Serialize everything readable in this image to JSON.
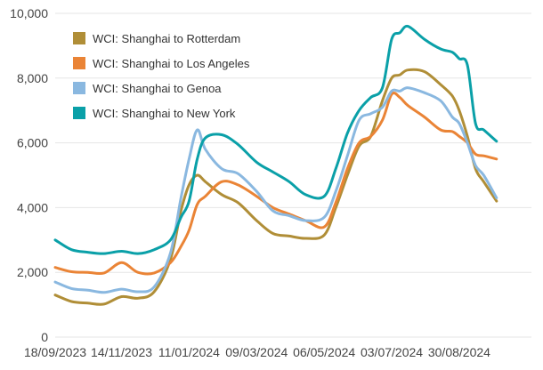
{
  "chart_data": {
    "type": "line",
    "title": "",
    "xlabel": "",
    "ylabel": "",
    "ylim": [
      0,
      10000
    ],
    "yticks": [
      0,
      2000,
      4000,
      6000,
      8000,
      10000
    ],
    "ytick_labels": [
      "0",
      "2,000",
      "4,000",
      "6,000",
      "8,000",
      "10,000"
    ],
    "xlim": [
      "2023-09-18",
      "2024-10-31"
    ],
    "xticks": [
      "2023-09-18",
      "2023-11-14",
      "2024-01-11",
      "2024-03-09",
      "2024-05-06",
      "2024-07-03",
      "2024-08-30"
    ],
    "xtick_labels": [
      "18/09/2023",
      "14/11/2023",
      "11/01/2024",
      "09/03/2024",
      "06/05/2024",
      "03/07/2024",
      "30/08/2024"
    ],
    "grid": "horizontal",
    "legend_position": "top-left",
    "series": [
      {
        "name": "WCI: Shanghai to Rotterdam",
        "color": "#b08e37",
        "points": [
          [
            "2023-09-18",
            1300
          ],
          [
            "2023-10-02",
            1100
          ],
          [
            "2023-10-16",
            1050
          ],
          [
            "2023-10-30",
            1020
          ],
          [
            "2023-11-14",
            1250
          ],
          [
            "2023-11-28",
            1200
          ],
          [
            "2023-12-12",
            1400
          ],
          [
            "2023-12-26",
            2400
          ],
          [
            "2024-01-04",
            3900
          ],
          [
            "2024-01-11",
            4700
          ],
          [
            "2024-01-18",
            5000
          ],
          [
            "2024-01-25",
            4800
          ],
          [
            "2024-02-08",
            4400
          ],
          [
            "2024-02-22",
            4150
          ],
          [
            "2024-03-09",
            3600
          ],
          [
            "2024-03-23",
            3200
          ],
          [
            "2024-04-06",
            3120
          ],
          [
            "2024-04-20",
            3050
          ],
          [
            "2024-05-06",
            3150
          ],
          [
            "2024-05-16",
            4000
          ],
          [
            "2024-05-26",
            5000
          ],
          [
            "2024-06-05",
            5900
          ],
          [
            "2024-06-15",
            6200
          ],
          [
            "2024-06-25",
            7300
          ],
          [
            "2024-07-03",
            8000
          ],
          [
            "2024-07-10",
            8100
          ],
          [
            "2024-07-17",
            8250
          ],
          [
            "2024-07-31",
            8200
          ],
          [
            "2024-08-14",
            7800
          ],
          [
            "2024-08-24",
            7450
          ],
          [
            "2024-08-30",
            7000
          ],
          [
            "2024-09-06",
            6200
          ],
          [
            "2024-09-13",
            5200
          ],
          [
            "2024-09-20",
            4800
          ],
          [
            "2024-10-01",
            4200
          ]
        ]
      },
      {
        "name": "WCI: Shanghai to Los Angeles",
        "color": "#ea8436",
        "points": [
          [
            "2023-09-18",
            2150
          ],
          [
            "2023-10-02",
            2020
          ],
          [
            "2023-10-16",
            2000
          ],
          [
            "2023-10-30",
            1980
          ],
          [
            "2023-11-14",
            2300
          ],
          [
            "2023-11-28",
            2000
          ],
          [
            "2023-12-12",
            1980
          ],
          [
            "2023-12-26",
            2300
          ],
          [
            "2024-01-04",
            2800
          ],
          [
            "2024-01-11",
            3300
          ],
          [
            "2024-01-18",
            4100
          ],
          [
            "2024-01-25",
            4350
          ],
          [
            "2024-02-08",
            4800
          ],
          [
            "2024-02-22",
            4700
          ],
          [
            "2024-03-09",
            4350
          ],
          [
            "2024-03-23",
            4000
          ],
          [
            "2024-04-06",
            3800
          ],
          [
            "2024-04-20",
            3600
          ],
          [
            "2024-05-06",
            3400
          ],
          [
            "2024-05-16",
            4150
          ],
          [
            "2024-05-26",
            5200
          ],
          [
            "2024-06-05",
            6000
          ],
          [
            "2024-06-15",
            6200
          ],
          [
            "2024-06-25",
            6700
          ],
          [
            "2024-07-03",
            7500
          ],
          [
            "2024-07-10",
            7400
          ],
          [
            "2024-07-17",
            7150
          ],
          [
            "2024-07-31",
            6800
          ],
          [
            "2024-08-14",
            6400
          ],
          [
            "2024-08-24",
            6350
          ],
          [
            "2024-08-30",
            6200
          ],
          [
            "2024-09-06",
            6000
          ],
          [
            "2024-09-13",
            5650
          ],
          [
            "2024-09-20",
            5600
          ],
          [
            "2024-10-01",
            5500
          ]
        ]
      },
      {
        "name": "WCI: Shanghai to Genoa",
        "color": "#8ab8e0",
        "points": [
          [
            "2023-09-18",
            1700
          ],
          [
            "2023-10-02",
            1500
          ],
          [
            "2023-10-16",
            1450
          ],
          [
            "2023-10-30",
            1380
          ],
          [
            "2023-11-14",
            1480
          ],
          [
            "2023-11-28",
            1400
          ],
          [
            "2023-12-12",
            1550
          ],
          [
            "2023-12-26",
            2600
          ],
          [
            "2024-01-04",
            4300
          ],
          [
            "2024-01-11",
            5500
          ],
          [
            "2024-01-18",
            6400
          ],
          [
            "2024-01-25",
            5800
          ],
          [
            "2024-02-08",
            5200
          ],
          [
            "2024-02-22",
            5050
          ],
          [
            "2024-03-09",
            4500
          ],
          [
            "2024-03-23",
            3900
          ],
          [
            "2024-04-06",
            3750
          ],
          [
            "2024-04-20",
            3600
          ],
          [
            "2024-05-06",
            3700
          ],
          [
            "2024-05-16",
            4500
          ],
          [
            "2024-05-26",
            5600
          ],
          [
            "2024-06-05",
            6700
          ],
          [
            "2024-06-15",
            6900
          ],
          [
            "2024-06-25",
            7100
          ],
          [
            "2024-07-03",
            7600
          ],
          [
            "2024-07-10",
            7600
          ],
          [
            "2024-07-17",
            7700
          ],
          [
            "2024-07-31",
            7550
          ],
          [
            "2024-08-14",
            7300
          ],
          [
            "2024-08-24",
            6800
          ],
          [
            "2024-08-30",
            6600
          ],
          [
            "2024-09-06",
            6000
          ],
          [
            "2024-09-13",
            5300
          ],
          [
            "2024-09-20",
            5000
          ],
          [
            "2024-10-01",
            4300
          ]
        ]
      },
      {
        "name": "WCI: Shanghai to New York",
        "color": "#0aa0a8",
        "points": [
          [
            "2023-09-18",
            3000
          ],
          [
            "2023-10-02",
            2700
          ],
          [
            "2023-10-16",
            2620
          ],
          [
            "2023-10-30",
            2580
          ],
          [
            "2023-11-14",
            2650
          ],
          [
            "2023-11-28",
            2580
          ],
          [
            "2023-12-12",
            2700
          ],
          [
            "2023-12-26",
            3000
          ],
          [
            "2024-01-04",
            3700
          ],
          [
            "2024-01-11",
            4200
          ],
          [
            "2024-01-18",
            5500
          ],
          [
            "2024-01-25",
            6150
          ],
          [
            "2024-02-08",
            6250
          ],
          [
            "2024-02-22",
            5950
          ],
          [
            "2024-03-09",
            5400
          ],
          [
            "2024-03-23",
            5100
          ],
          [
            "2024-04-06",
            4800
          ],
          [
            "2024-04-20",
            4400
          ],
          [
            "2024-05-06",
            4350
          ],
          [
            "2024-05-16",
            5200
          ],
          [
            "2024-05-26",
            6300
          ],
          [
            "2024-06-05",
            7000
          ],
          [
            "2024-06-15",
            7400
          ],
          [
            "2024-06-25",
            7700
          ],
          [
            "2024-07-03",
            9200
          ],
          [
            "2024-07-10",
            9400
          ],
          [
            "2024-07-17",
            9600
          ],
          [
            "2024-07-31",
            9200
          ],
          [
            "2024-08-14",
            8900
          ],
          [
            "2024-08-24",
            8800
          ],
          [
            "2024-08-30",
            8600
          ],
          [
            "2024-09-06",
            8400
          ],
          [
            "2024-09-13",
            6600
          ],
          [
            "2024-09-20",
            6400
          ],
          [
            "2024-10-01",
            6050
          ]
        ]
      }
    ]
  }
}
